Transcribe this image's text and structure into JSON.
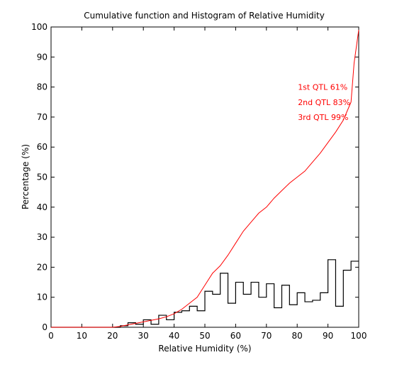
{
  "chart_data": {
    "type": "line",
    "title": "Cumulative function and Histogram of Relative Humidity",
    "xlabel": "Relative Humidity (%)",
    "ylabel": "Percentage (%)",
    "xlim": [
      0,
      100
    ],
    "ylim": [
      0,
      100
    ],
    "xticks": [
      0,
      10,
      20,
      30,
      40,
      50,
      60,
      70,
      80,
      90,
      100
    ],
    "yticks": [
      0,
      10,
      20,
      30,
      40,
      50,
      60,
      70,
      80,
      90,
      100
    ],
    "grid": false,
    "annotations": [
      {
        "text": "1st QTL  61%",
        "x": 80,
        "y": 80
      },
      {
        "text": "2nd QTL  83%",
        "x": 80,
        "y": 75
      },
      {
        "text": "3rd QTL  99%",
        "x": 80,
        "y": 70
      }
    ],
    "series": [
      {
        "kind": "step",
        "color": "#000000",
        "x": [
          0,
          2.5,
          5,
          7.5,
          10,
          12.5,
          15,
          17.5,
          20,
          22.5,
          25,
          27.5,
          30,
          32.5,
          35,
          37.5,
          40,
          42.5,
          45,
          47.5,
          50,
          52.5,
          55,
          57.5,
          60,
          62.5,
          65,
          67.5,
          70,
          72.5,
          75,
          77.5,
          80,
          82.5,
          85,
          87.5,
          90,
          92.5,
          95,
          97.5,
          100
        ],
        "y": [
          0,
          0,
          0,
          0,
          0,
          0,
          0,
          0,
          0,
          0.5,
          1.5,
          1,
          2.5,
          1,
          4,
          2.5,
          5,
          5.5,
          7,
          5.5,
          12,
          11,
          18,
          8,
          15,
          11,
          15,
          10,
          14.5,
          6.5,
          14,
          7.5,
          11.5,
          8.5,
          9,
          11.5,
          22.5,
          7,
          19,
          22,
          22
        ]
      },
      {
        "kind": "line",
        "color": "#ff0000",
        "x": [
          0,
          20,
          22.5,
          25,
          27.5,
          30,
          32.5,
          35,
          37.5,
          40,
          42.5,
          45,
          47.5,
          50,
          52.5,
          55,
          57.5,
          60,
          62.5,
          65,
          67.5,
          70,
          72.5,
          75,
          77.5,
          80,
          82.5,
          85,
          87.5,
          90,
          92.5,
          95,
          97.5,
          98.5,
          100
        ],
        "y": [
          0,
          0,
          0.3,
          0.8,
          1.3,
          1.8,
          2.3,
          2.8,
          3.5,
          4.5,
          6,
          8,
          10,
          14,
          18,
          20.5,
          24,
          28,
          32,
          35,
          38,
          40,
          43,
          45.5,
          48,
          50,
          52,
          55,
          58,
          61.5,
          65,
          69,
          75,
          88,
          99
        ]
      }
    ]
  }
}
